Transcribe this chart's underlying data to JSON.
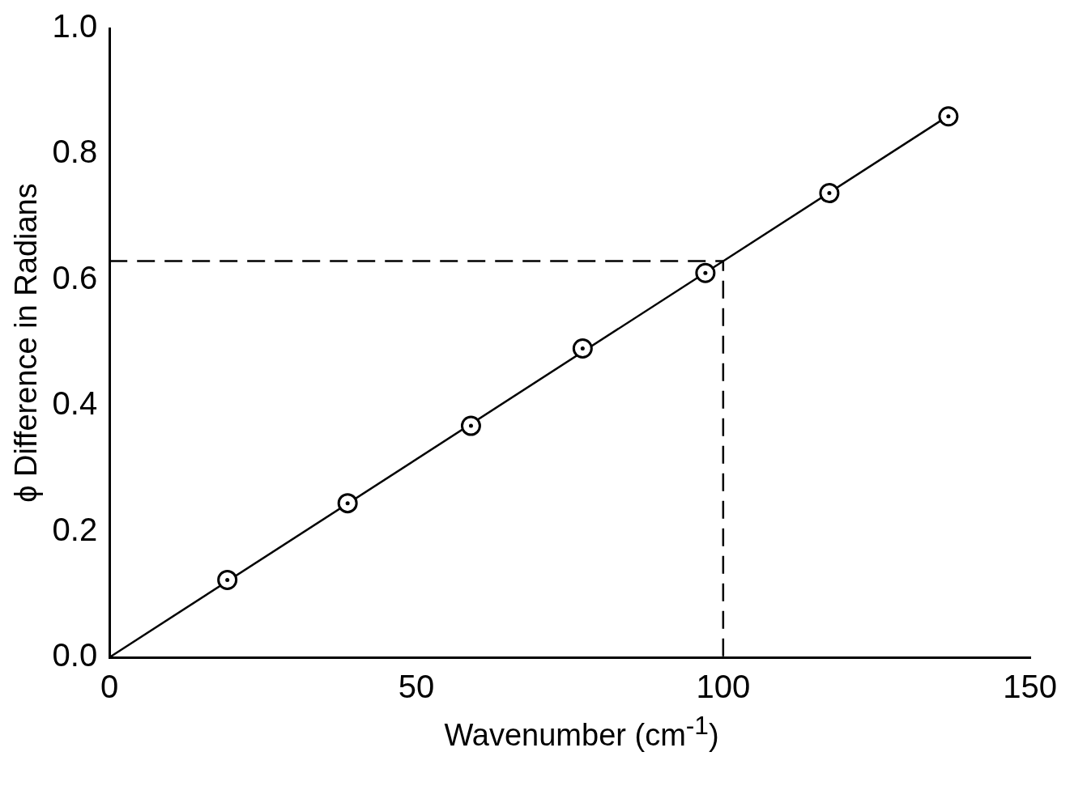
{
  "chart_data": {
    "type": "scatter",
    "xlabel": "Wavenumber (cm$^{-1}$)",
    "ylabel": "ϕ Difference in Radians",
    "xlim": [
      0,
      150
    ],
    "xticks": [
      0,
      50,
      100,
      150
    ],
    "ylim": [
      0,
      1
    ],
    "yticks": [
      {
        "value": 0,
        "label": "0.0"
      },
      0.2,
      0.4,
      0.6,
      0.8,
      {
        "value": 1,
        "label": "1.0"
      }
    ],
    "grid": false,
    "legend": false,
    "series": [
      {
        "type": "scatter",
        "marker": "circle",
        "color": "#000000",
        "x": [
          19.2,
          38.8,
          58.9,
          77.1,
          97.1,
          117.3,
          136.7
        ],
        "values": [
          0.123,
          0.245,
          0.368,
          0.491,
          0.611,
          0.738,
          0.86
        ]
      },
      {
        "type": "line",
        "marker": "none",
        "line_style": "solid",
        "color": "#000000",
        "x": [
          0,
          137.5
        ],
        "values": [
          0,
          0.866
        ]
      },
      {
        "type": "line",
        "marker": "none",
        "line_style": "dashed",
        "color": "#000000",
        "x": [
          0,
          100,
          100
        ],
        "values": [
          0.63,
          0.63,
          0
        ]
      }
    ]
  }
}
